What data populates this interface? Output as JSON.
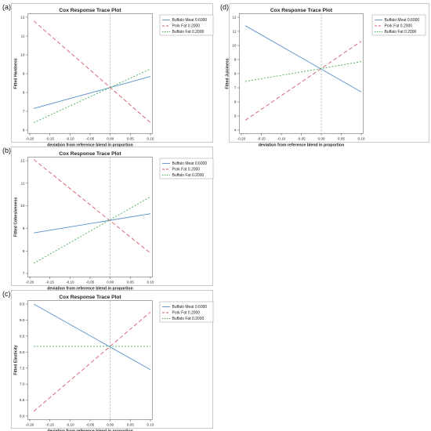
{
  "colors": {
    "meat": "#5b8fc9",
    "pork": "#d35b6b",
    "fat": "#3fae55",
    "refline": "#9a9a9a"
  },
  "legend_labels": [
    "Buffalo Meat 0.6000",
    "Pork Fat 0.2000",
    "Buffalo Fat 0.2000"
  ],
  "chart_data": [
    {
      "id": "a",
      "panel_label": "(a)",
      "type": "line",
      "title": "Cox Response Trace Plot",
      "xlabel": "deviation from reference blend in proportion",
      "ylabel": "Fitted Hardness",
      "xlim": [
        -0.2,
        0.1
      ],
      "ylim": [
        6,
        12
      ],
      "xticks": [
        "-0.20",
        "-0.15",
        "-0.10",
        "-0.05",
        "0.00",
        "0.05",
        "0.10"
      ],
      "yticks": [
        "6",
        "7",
        "8",
        "9",
        "10",
        "11",
        "12"
      ],
      "reference_line_x": 0.0,
      "legend": "top-right",
      "series": [
        {
          "name": "Buffalo Meat 0.6000",
          "style": "solid",
          "x": [
            -0.19,
            0.1
          ],
          "y": [
            7.15,
            8.85
          ]
        },
        {
          "name": "Pork Fat 0.2000",
          "style": "dashed",
          "x": [
            -0.19,
            0.1
          ],
          "y": [
            11.8,
            6.4
          ]
        },
        {
          "name": "Buffalo Fat 0.2000",
          "style": "dotted",
          "x": [
            -0.19,
            0.1
          ],
          "y": [
            6.4,
            9.25
          ]
        }
      ]
    },
    {
      "id": "b",
      "panel_label": "(b)",
      "type": "line",
      "title": "Cox Response Trace Plot",
      "xlabel": "deviation from reference blend in proportion",
      "ylabel": "Fitted Cohesiveness",
      "xlim": [
        -0.2,
        0.1
      ],
      "ylim": [
        7,
        12
      ],
      "xticks": [
        "-0.20",
        "-0.15",
        "-0.10",
        "-0.05",
        "0.00",
        "0.05",
        "0.10"
      ],
      "yticks": [
        "7",
        "8",
        "9",
        "10",
        "11",
        "12"
      ],
      "reference_line_x": 0.0,
      "legend": "top-right",
      "series": [
        {
          "name": "Buffalo Meat 0.6000",
          "style": "solid",
          "x": [
            -0.19,
            0.1
          ],
          "y": [
            8.8,
            9.65
          ]
        },
        {
          "name": "Pork Fat 0.2000",
          "style": "dashed",
          "x": [
            -0.19,
            0.1
          ],
          "y": [
            12.05,
            7.9
          ]
        },
        {
          "name": "Buffalo Fat 0.2000",
          "style": "dotted",
          "x": [
            -0.19,
            0.1
          ],
          "y": [
            7.45,
            10.4
          ]
        }
      ]
    },
    {
      "id": "c",
      "panel_label": "(c)",
      "type": "line",
      "title": "Cox Response Trace Plot",
      "xlabel": "deviation from reference blend in proportion",
      "ylabel": "Fitted Elasticity",
      "xlim": [
        -0.2,
        0.1
      ],
      "ylim": [
        6.0,
        9.5
      ],
      "xticks": [
        "-0.20",
        "-0.15",
        "-0.10",
        "-0.05",
        "0.00",
        "0.05",
        "0.10"
      ],
      "yticks": [
        "6.0",
        "6.5",
        "7.0",
        "7.5",
        "8.0",
        "8.5",
        "9.0",
        "9.5"
      ],
      "reference_line_x": 0.0,
      "legend": "top-right",
      "series": [
        {
          "name": "Buffalo Meat 0.6000",
          "style": "solid",
          "x": [
            -0.19,
            0.1
          ],
          "y": [
            9.5,
            7.45
          ]
        },
        {
          "name": "Pork Fat 0.2000",
          "style": "dashed",
          "x": [
            -0.19,
            0.1
          ],
          "y": [
            6.15,
            9.25
          ]
        },
        {
          "name": "Buffalo Fat 0.2000",
          "style": "dotted",
          "x": [
            -0.19,
            0.1
          ],
          "y": [
            8.18,
            8.18
          ]
        }
      ]
    },
    {
      "id": "d",
      "panel_label": "(d)",
      "type": "line",
      "title": "Cox Response Trace Plot",
      "xlabel": "deviation from reference blend in proportion",
      "ylabel": "Fitted Juiciness",
      "xlim": [
        -0.2,
        0.1
      ],
      "ylim": [
        4,
        12
      ],
      "xticks": [
        "-0.20",
        "-0.15",
        "-0.10",
        "-0.05",
        "0.00",
        "0.05",
        "0.10"
      ],
      "yticks": [
        "4",
        "5",
        "6",
        "7",
        "8",
        "9",
        "10",
        "11",
        "12"
      ],
      "reference_line_x": 0.0,
      "legend": "top-right",
      "series": [
        {
          "name": "Buffalo Meat 0.6000",
          "style": "solid",
          "x": [
            -0.19,
            0.1
          ],
          "y": [
            11.4,
            6.7
          ]
        },
        {
          "name": "Pork Fat 0.2000",
          "style": "dashed",
          "x": [
            -0.19,
            0.1
          ],
          "y": [
            4.7,
            10.3
          ]
        },
        {
          "name": "Buffalo Fat 0.2000",
          "style": "dotted",
          "x": [
            -0.19,
            0.1
          ],
          "y": [
            7.45,
            8.85
          ]
        }
      ]
    }
  ]
}
